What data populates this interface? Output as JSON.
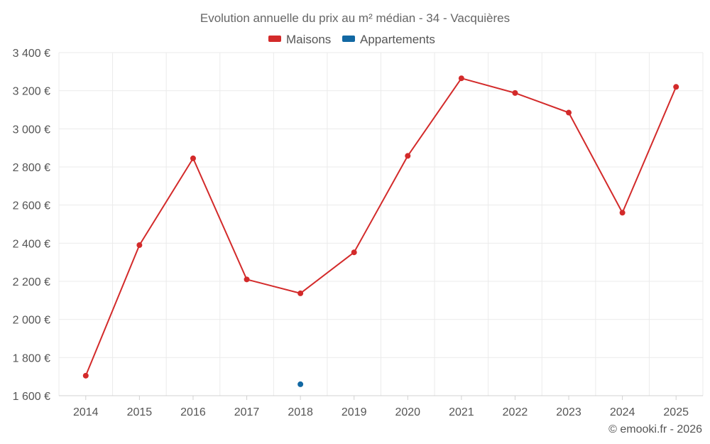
{
  "chart_data": {
    "type": "line",
    "title": "Evolution annuelle du prix au m² médian - 34 - Vacquières",
    "categories": [
      "2014",
      "2015",
      "2016",
      "2017",
      "2018",
      "2019",
      "2020",
      "2021",
      "2022",
      "2023",
      "2024",
      "2025"
    ],
    "series": [
      {
        "name": "Maisons",
        "color": "#d32a2a",
        "values": [
          1705,
          2390,
          2845,
          2210,
          2137,
          2352,
          2858,
          3265,
          3188,
          3085,
          2560,
          3220
        ]
      },
      {
        "name": "Appartements",
        "color": "#1268a3",
        "values": [
          null,
          null,
          null,
          null,
          1660,
          null,
          null,
          null,
          null,
          null,
          null,
          null
        ]
      }
    ],
    "ylim": [
      1600,
      3400
    ],
    "yticks": [
      1600,
      1800,
      2000,
      2200,
      2400,
      2600,
      2800,
      3000,
      3200,
      3400
    ],
    "ytick_labels": [
      "1 600 €",
      "1 800 €",
      "2 000 €",
      "2 200 €",
      "2 400 €",
      "2 600 €",
      "2 800 €",
      "3 000 €",
      "3 200 €",
      "3 400 €"
    ],
    "xlabel": "",
    "ylabel": "",
    "grid": true,
    "legend_position": "top-center"
  },
  "credit": "© emooki.fr - 2026"
}
